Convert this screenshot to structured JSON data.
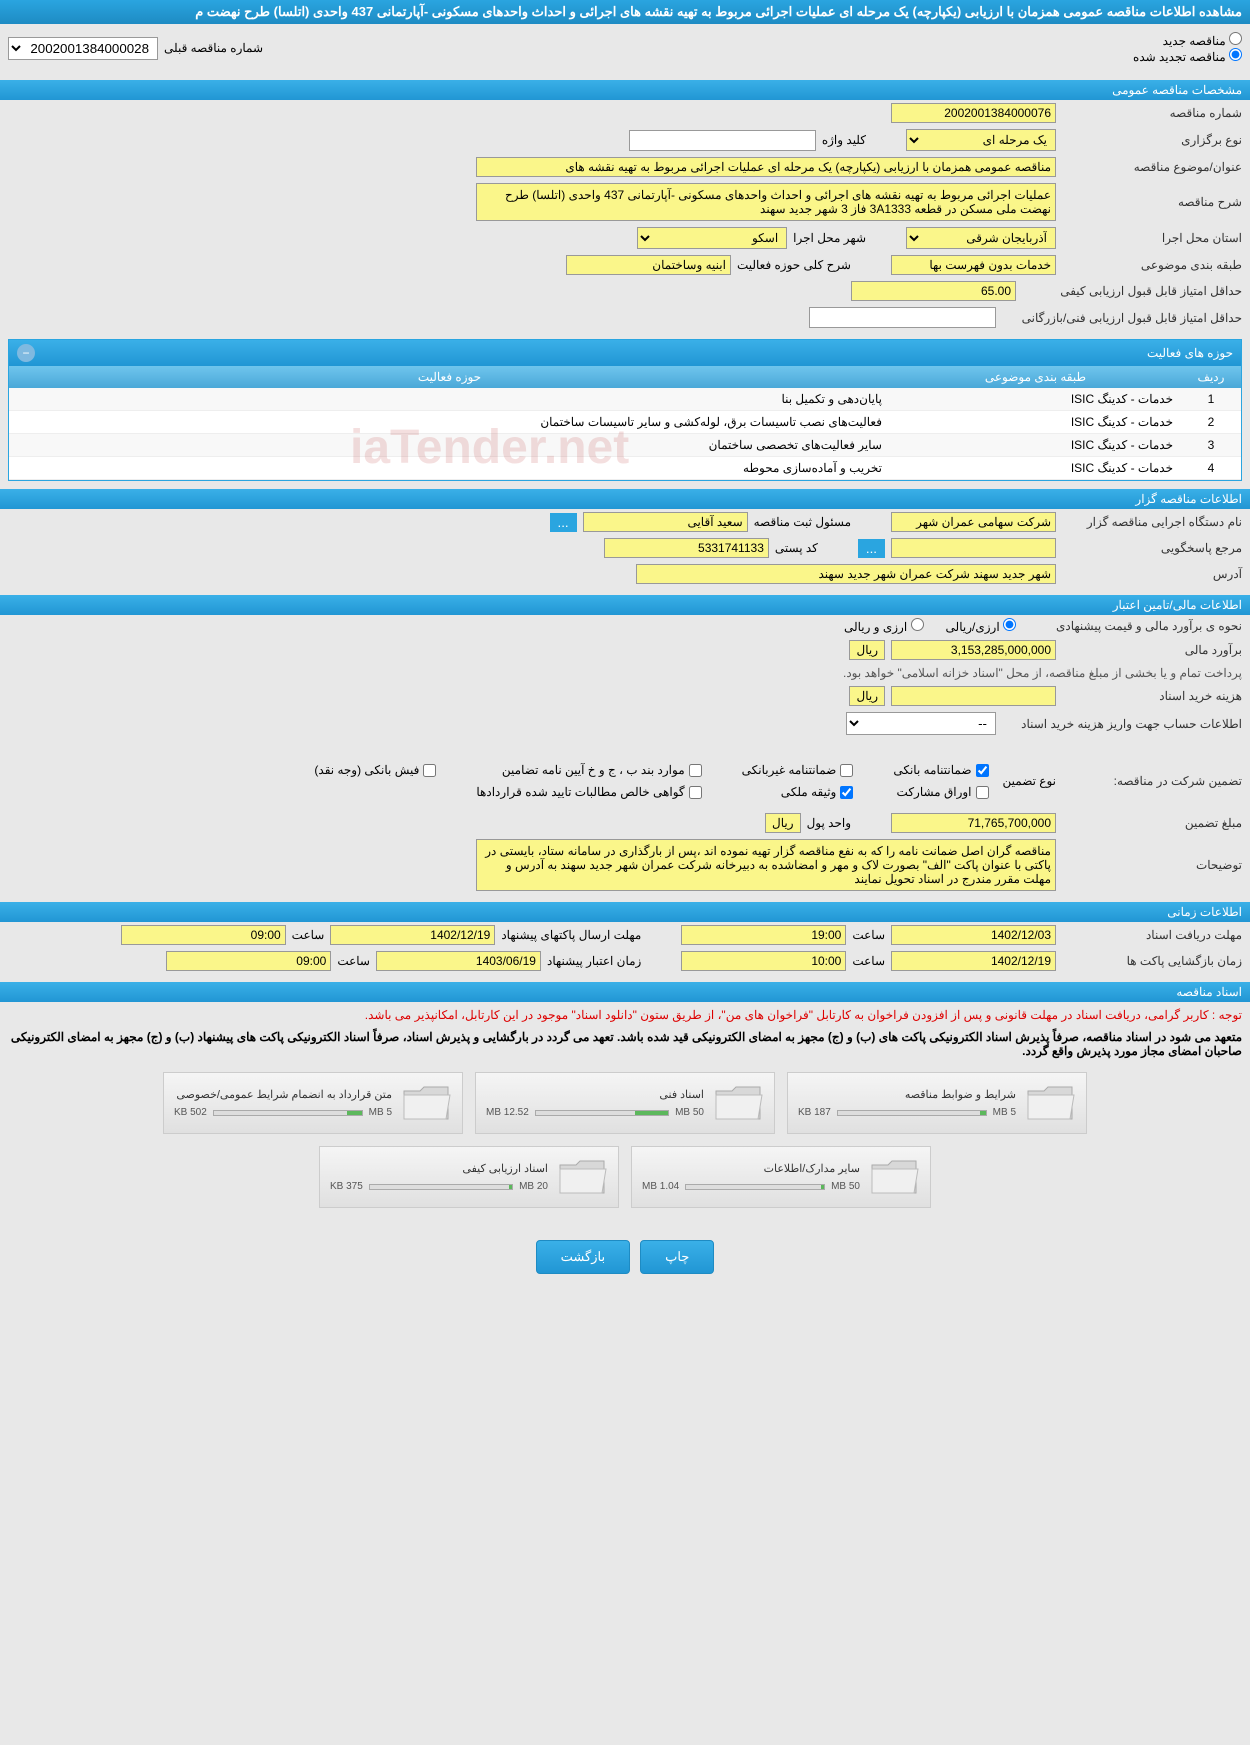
{
  "header": {
    "title": "مشاهده اطلاعات مناقصه عمومی همزمان با ارزیابی (یکپارچه) یک مرحله ای عملیات اجرائی مربوط به تهیه نقشه های اجرائی و احداث واحدهای مسکونی -آپارتمانی 437 واحدی (اتلسا) طرح نهضت م"
  },
  "radio": {
    "new_label": "مناقصه جدید",
    "renewed_label": "مناقصه تجدید شده",
    "prev_num_label": "شماره مناقصه قبلی",
    "prev_num_value": "2002001384000028"
  },
  "sections": {
    "general": "مشخصات مناقصه عمومی",
    "tenderer": "اطلاعات مناقصه گزار",
    "financial": "اطلاعات مالی/تامین اعتبار",
    "timing": "اطلاعات زمانی",
    "documents": "اسناد مناقصه"
  },
  "general": {
    "num_label": "شماره مناقصه",
    "num_value": "2002001384000076",
    "type_label": "نوع برگزاری",
    "type_value": "یک مرحله ای",
    "keyword_label": "کلید واژه",
    "keyword_value": "",
    "title_label": "عنوان/موضوع مناقصه",
    "title_value": "مناقصه عمومی همزمان با ارزیابی (یکپارچه) یک مرحله ای عملیات اجرائی مربوط به تهیه نقشه های",
    "desc_label": "شرح مناقصه",
    "desc_value": "عملیات اجرائی مربوط به تهیه نقشه های اجرائی و احداث واحدهای مسکونی -آپارتمانی 437 واحدی (اتلسا) طرح نهضت ملی مسکن در قطعه 3A1333 فاز 3 شهر جدید سهند",
    "province_label": "استان محل اجرا",
    "province_value": "آذربایجان شرقی",
    "city_label": "شهر محل اجرا",
    "city_value": "اسکو",
    "category_label": "طبقه بندی موضوعی",
    "category_value": "خدمات بدون فهرست بها",
    "activity_desc_label": "شرح کلی حوزه فعالیت",
    "activity_desc_value": "ابنیه وساختمان",
    "qual_score_label": "حداقل امتیاز قابل قبول ارزیابی کیفی",
    "qual_score_value": "65.00",
    "tech_score_label": "حداقل امتیاز قابل قبول ارزیابی فنی/بازرگانی",
    "tech_score_value": ""
  },
  "activities": {
    "panel_title": "حوزه های فعالیت",
    "columns": {
      "row": "ردیف",
      "category": "طبقه بندی موضوعی",
      "field": "حوزه فعالیت"
    },
    "rows": [
      {
        "n": "1",
        "cat": "خدمات - کدینگ ISIC",
        "field": "پایان‌دهی و تکمیل بنا"
      },
      {
        "n": "2",
        "cat": "خدمات - کدینگ ISIC",
        "field": "فعالیت‌های نصب تاسیسات برق، لوله‌کشی و سایر تاسیسات ساختمان"
      },
      {
        "n": "3",
        "cat": "خدمات - کدینگ ISIC",
        "field": "سایر فعالیت‌های تخصصی ساختمان"
      },
      {
        "n": "4",
        "cat": "خدمات - کدینگ ISIC",
        "field": "تخریب و آماده‌سازی محوطه"
      }
    ]
  },
  "tenderer": {
    "org_label": "نام دستگاه اجرایی مناقصه گزار",
    "org_value": "شرکت سهامی عمران شهر",
    "reg_label": "مسئول ثبت مناقصه",
    "reg_value": "سعید آقایی",
    "resp_label": "مرجع پاسخگویی",
    "resp_value": "",
    "postal_label": "کد پستی",
    "postal_value": "5331741133",
    "address_label": "آدرس",
    "address_value": "شهر جدید سهند شرکت عمران شهر جدید سهند"
  },
  "financial": {
    "method_label": "نحوه ی برآورد مالی و قیمت پیشنهادی",
    "opt_rial": "ارزی/ریالی",
    "opt_currency": "ارزی و ریالی",
    "estimate_label": "برآورد مالی",
    "estimate_value": "3,153,285,000,000",
    "currency_unit": "ریال",
    "payment_note": "پرداخت تمام و یا بخشی از مبلغ مناقصه، از محل \"اسناد خزانه اسلامی\" خواهد بود.",
    "purchase_cost_label": "هزینه خرید اسناد",
    "purchase_cost_value": "",
    "account_label": "اطلاعات حساب جهت واریز هزینه خرید اسناد",
    "account_value": "--",
    "guarantee_label": "تضمین شرکت در مناقصه:",
    "guarantee_type_label": "نوع تضمین",
    "guarantees": {
      "bank": "ضمانتنامه بانکی",
      "nonbank": "ضمانتنامه غیربانکی",
      "regulation": "موارد بند ب ، ج و خ آیین نامه تضامین",
      "cash": "فیش بانکی (وجه نقد)",
      "securities": "اوراق مشارکت",
      "property": "وثیقه ملکی",
      "receivables": "گواهی خالص مطالبات تایید شده قراردادها"
    },
    "guarantee_amount_label": "مبلغ تضمین",
    "guarantee_amount_value": "71,765,700,000",
    "money_unit_label": "واحد پول",
    "money_unit_value": "ریال",
    "notes_label": "توضیحات",
    "notes_value": "مناقصه گران اصل ضمانت نامه را که به نفع مناقصه گزار تهیه نموده اند ،پس از بارگذاری در سامانه ستاد، بایستی در پاکتی با عنوان پاکت \"الف\" بصورت لاک و مهر و امضاشده به دبیرخانه شرکت عمران شهر جدید سهند به آدرس و مهلت مقرر مندرج در اسناد تحویل نمایند"
  },
  "timing": {
    "receive_label": "مهلت دریافت اسناد",
    "receive_date": "1402/12/03",
    "receive_time": "19:00",
    "send_label": "مهلت ارسال پاکتهای پیشنهاد",
    "send_date": "1402/12/19",
    "send_time": "09:00",
    "open_label": "زمان بازگشایی پاکت ها",
    "open_date": "1402/12/19",
    "open_time": "10:00",
    "validity_label": "زمان اعتبار پیشنهاد",
    "validity_date": "1403/06/19",
    "validity_time": "09:00",
    "time_label": "ساعت"
  },
  "documents": {
    "notice1": "توجه : کاربر گرامی، دریافت اسناد در مهلت قانونی و پس از افزودن فراخوان به کارتابل \"فراخوان های من\"، از طریق ستون \"دانلود اسناد\" موجود در این کارتابل، امکانپذیر می باشد.",
    "notice2": "متعهد می شود در اسناد مناقصه، صرفاً پذیرش اسناد الکترونیکی پاکت های (ب) و (ج) مجهز به امضای الکترونیکی قید شده باشد. تعهد می گردد در بارگشایی و پذیرش اسناد، صرفاً اسناد الکترونیکی پاکت های پیشنهاد (ب) و (ج) مجهز به امضای الکترونیکی صاحبان امضای مجاز مورد پذیرش واقع گردد.",
    "files": [
      {
        "title": "شرایط و ضوابط مناقصه",
        "size": "187 KB",
        "cap": "5 MB",
        "pct": 4
      },
      {
        "title": "اسناد فنی",
        "size": "12.52 MB",
        "cap": "50 MB",
        "pct": 25
      },
      {
        "title": "متن قرارداد به انضمام شرایط عمومی/خصوصی",
        "size": "502 KB",
        "cap": "5 MB",
        "pct": 10
      },
      {
        "title": "سایر مدارک/اطلاعات",
        "size": "1.04 MB",
        "cap": "50 MB",
        "pct": 2
      },
      {
        "title": "اسناد ارزیابی کیفی",
        "size": "375 KB",
        "cap": "20 MB",
        "pct": 2
      }
    ]
  },
  "buttons": {
    "print": "چاپ",
    "back": "بازگشت",
    "more": "..."
  },
  "watermark": "iaTender.net",
  "colors": {
    "header_bg": "#2aa5e0",
    "input_bg": "#faf68a",
    "body_bg": "#e8e8e8"
  }
}
